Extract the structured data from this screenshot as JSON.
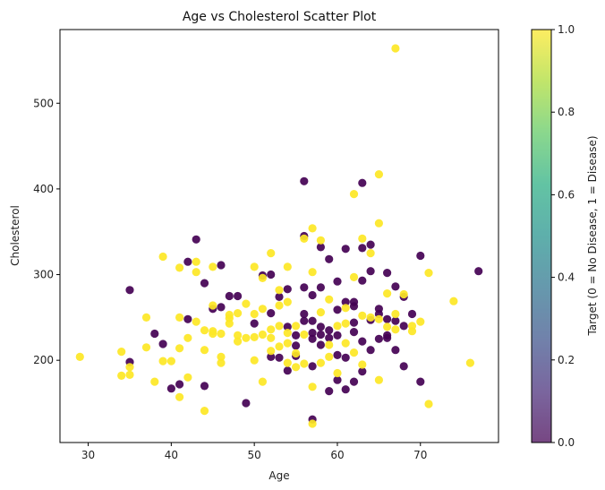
{
  "chart_data": {
    "type": "scatter",
    "title": "Age vs Cholesterol Scatter Plot",
    "xlabel": "Age",
    "ylabel": "Cholesterol",
    "xlim": [
      26.6,
      79.4
    ],
    "ylim": [
      104,
      586
    ],
    "xticks": [
      30,
      40,
      50,
      60,
      70
    ],
    "yticks": [
      200,
      300,
      400,
      500
    ],
    "grid": false,
    "colorbar": {
      "label": "Target (0 = No Disease, 1 = Disease)",
      "range": [
        0.0,
        1.0
      ],
      "ticks": [
        "0.0",
        "0.2",
        "0.4",
        "0.6",
        "0.8",
        "1.0"
      ],
      "colormap": "viridis"
    },
    "series": [
      {
        "target": 0,
        "color": "#440154",
        "points": [
          [
            77,
            304
          ],
          [
            67,
            286
          ],
          [
            68,
            274
          ],
          [
            70,
            322
          ],
          [
            66,
            302
          ],
          [
            69,
            254
          ],
          [
            70,
            175
          ],
          [
            68,
            193
          ],
          [
            67,
            212
          ],
          [
            66,
            226
          ],
          [
            65,
            225
          ],
          [
            64,
            212
          ],
          [
            63,
            407
          ],
          [
            62,
            268
          ],
          [
            61,
            330
          ],
          [
            63,
            331
          ],
          [
            64,
            335
          ],
          [
            60,
            229
          ],
          [
            62,
            263
          ],
          [
            62,
            244
          ],
          [
            61,
            166
          ],
          [
            60,
            177
          ],
          [
            59,
            164
          ],
          [
            58,
            230
          ],
          [
            57,
            232
          ],
          [
            57,
            246
          ],
          [
            56,
            409
          ],
          [
            56,
            254
          ],
          [
            56,
            285
          ],
          [
            55,
            205
          ],
          [
            55,
            217
          ],
          [
            54,
            283
          ],
          [
            53,
            274
          ],
          [
            52,
            255
          ],
          [
            51,
            299
          ],
          [
            50,
            243
          ],
          [
            49,
            150
          ],
          [
            48,
            275
          ],
          [
            47,
            275
          ],
          [
            46,
            262
          ],
          [
            45,
            260
          ],
          [
            44,
            290
          ],
          [
            43,
            341
          ],
          [
            42,
            315
          ],
          [
            41,
            172
          ],
          [
            40,
            167
          ],
          [
            39,
            219
          ],
          [
            38,
            231
          ],
          [
            35,
            198
          ],
          [
            35,
            282
          ],
          [
            42,
            248
          ],
          [
            44,
            170
          ],
          [
            46,
            311
          ],
          [
            52,
            300
          ],
          [
            54,
            188
          ],
          [
            56,
            345
          ],
          [
            58,
            332
          ],
          [
            59,
            318
          ],
          [
            60,
            292
          ],
          [
            61,
            268
          ],
          [
            62,
            175
          ],
          [
            63,
            222
          ],
          [
            64,
            304
          ],
          [
            65,
            260
          ],
          [
            66,
            248
          ],
          [
            67,
            246
          ],
          [
            68,
            240
          ],
          [
            58,
            239
          ],
          [
            59,
            235
          ],
          [
            57,
            225
          ],
          [
            59,
            226
          ],
          [
            60,
            259
          ],
          [
            62,
            233
          ],
          [
            64,
            247
          ],
          [
            66,
            229
          ],
          [
            63,
            187
          ],
          [
            58,
            218
          ],
          [
            56,
            246
          ],
          [
            53,
            203
          ],
          [
            54,
            239
          ],
          [
            55,
            229
          ],
          [
            57,
            276
          ],
          [
            52,
            204
          ],
          [
            61,
            203
          ],
          [
            60,
            206
          ],
          [
            65,
            254
          ],
          [
            58,
            285
          ],
          [
            57,
            193
          ],
          [
            63,
            293
          ],
          [
            57,
            131
          ]
        ]
      },
      {
        "target": 1,
        "color": "#fde725",
        "points": [
          [
            67,
            564
          ],
          [
            65,
            417
          ],
          [
            62,
            394
          ],
          [
            65,
            360
          ],
          [
            63,
            342
          ],
          [
            57,
            354
          ],
          [
            56,
            342
          ],
          [
            52,
            325
          ],
          [
            54,
            309
          ],
          [
            50,
            309
          ],
          [
            45,
            309
          ],
          [
            43,
            315
          ],
          [
            41,
            308
          ],
          [
            39,
            321
          ],
          [
            37,
            250
          ],
          [
            35,
            183
          ],
          [
            34,
            210
          ],
          [
            29,
            204
          ],
          [
            34,
            182
          ],
          [
            35,
            192
          ],
          [
            37,
            215
          ],
          [
            38,
            175
          ],
          [
            39,
            199
          ],
          [
            40,
            199
          ],
          [
            41,
            214
          ],
          [
            41,
            157
          ],
          [
            42,
            180
          ],
          [
            43,
            245
          ],
          [
            43,
            303
          ],
          [
            44,
            141
          ],
          [
            45,
            234
          ],
          [
            45,
            264
          ],
          [
            46,
            204
          ],
          [
            46,
            197
          ],
          [
            47,
            243
          ],
          [
            47,
            253
          ],
          [
            48,
            229
          ],
          [
            48,
            222
          ],
          [
            49,
            266
          ],
          [
            50,
            200
          ],
          [
            50,
            254
          ],
          [
            51,
            175
          ],
          [
            51,
            260
          ],
          [
            52,
            211
          ],
          [
            52,
            236
          ],
          [
            53,
            264
          ],
          [
            53,
            216
          ],
          [
            54,
            220
          ],
          [
            54,
            268
          ],
          [
            55,
            208
          ],
          [
            55,
            192
          ],
          [
            56,
            230
          ],
          [
            56,
            196
          ],
          [
            57,
            169
          ],
          [
            57,
            126
          ],
          [
            58,
            256
          ],
          [
            58,
            197
          ],
          [
            59,
            204
          ],
          [
            59,
            218
          ],
          [
            60,
            240
          ],
          [
            60,
            185
          ],
          [
            61,
            243
          ],
          [
            61,
            220
          ],
          [
            62,
            209
          ],
          [
            63,
            252
          ],
          [
            63,
            195
          ],
          [
            64,
            250
          ],
          [
            64,
            325
          ],
          [
            65,
            177
          ],
          [
            65,
            248
          ],
          [
            66,
            278
          ],
          [
            67,
            254
          ],
          [
            67,
            236
          ],
          [
            68,
            277
          ],
          [
            69,
            234
          ],
          [
            70,
            245
          ],
          [
            71,
            302
          ],
          [
            71,
            149
          ],
          [
            74,
            269
          ],
          [
            76,
            197
          ],
          [
            46,
            231
          ],
          [
            47,
            249
          ],
          [
            48,
            255
          ],
          [
            49,
            226
          ],
          [
            50,
            227
          ],
          [
            51,
            296
          ],
          [
            52,
            226
          ],
          [
            53,
            240
          ],
          [
            54,
            197
          ],
          [
            55,
            240
          ],
          [
            44,
            235
          ],
          [
            42,
            226
          ],
          [
            41,
            250
          ],
          [
            44,
            212
          ],
          [
            45,
            231
          ],
          [
            51,
            230
          ],
          [
            53,
            282
          ],
          [
            54,
            232
          ],
          [
            57,
            303
          ],
          [
            58,
            340
          ],
          [
            59,
            271
          ],
          [
            61,
            261
          ],
          [
            66,
            239
          ],
          [
            69,
            240
          ],
          [
            62,
            297
          ]
        ]
      }
    ]
  }
}
